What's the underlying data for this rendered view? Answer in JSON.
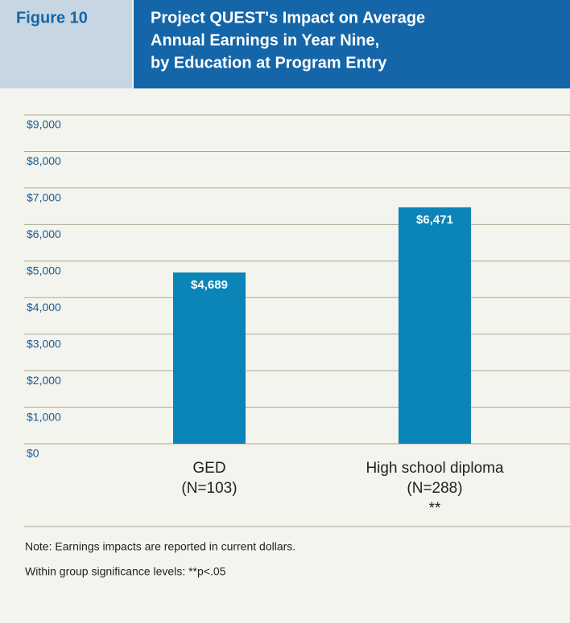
{
  "chart_data": {
    "type": "bar",
    "figure_label": "Figure 10",
    "title": [
      "Project QUEST's Impact on Average",
      "Annual Earnings in Year Nine,",
      "by Education at Program Entry"
    ],
    "categories": [
      [
        "GED",
        "(N=103)"
      ],
      [
        "High school diploma",
        "(N=288)",
        "**"
      ]
    ],
    "values": [
      4689,
      6471
    ],
    "value_labels": [
      "$4,689",
      "$6,471"
    ],
    "color": "#0b84b8",
    "ylim": [
      0,
      9000
    ],
    "yticks": [
      {
        "value": 0,
        "label": "$0"
      },
      {
        "value": 1000,
        "label": "$1,000"
      },
      {
        "value": 2000,
        "label": "$2,000"
      },
      {
        "value": 3000,
        "label": "$3,000"
      },
      {
        "value": 4000,
        "label": "$4,000"
      },
      {
        "value": 5000,
        "label": "$5,000"
      },
      {
        "value": 6000,
        "label": "$6,000"
      },
      {
        "value": 7000,
        "label": "$7,000"
      },
      {
        "value": 8000,
        "label": "$8,000"
      },
      {
        "value": 9000,
        "label": "$9,000"
      }
    ],
    "grid": true,
    "notes": [
      "Note: Earnings impacts are reported in current dollars.",
      "Within group significance levels: **p<.05"
    ]
  }
}
